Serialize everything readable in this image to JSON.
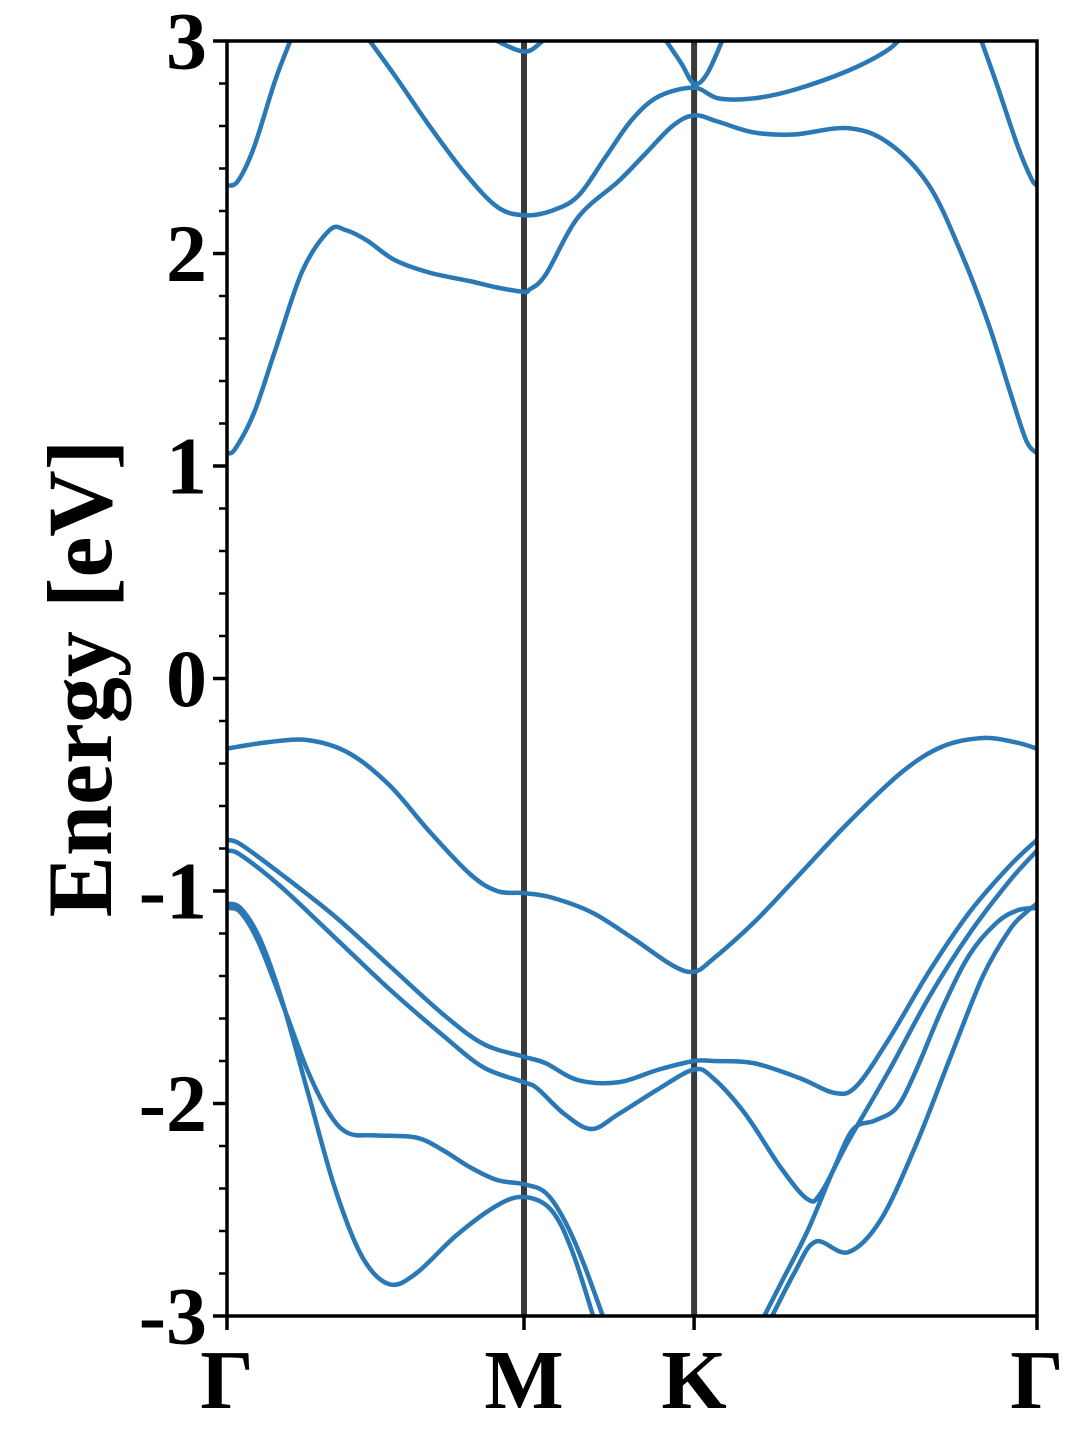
{
  "chart_data": {
    "type": "line",
    "title": "",
    "xlabel": "",
    "ylabel": "Energy [eV]",
    "ylim": [
      -3,
      3
    ],
    "x_range": [
      0,
      3
    ],
    "grid": false,
    "legend": "none",
    "y_ticks": [
      -3,
      -2,
      -1,
      0,
      1,
      2,
      3
    ],
    "y_tick_labels": [
      "-3",
      "-2",
      "-1",
      "0",
      "1",
      "2",
      "3"
    ],
    "x_ticks": [
      {
        "label": "Γ",
        "x": 0
      },
      {
        "label": "M",
        "x": 1.1
      },
      {
        "label": "K",
        "x": 1.73
      },
      {
        "label": "Γ",
        "x": 3
      }
    ],
    "line_color": "#2a78b5",
    "divider_color": "#3a3a3a",
    "series": [
      {
        "points": [
          [
            0,
            1.06
          ],
          [
            0.03,
            1.08
          ],
          [
            0.1,
            1.25
          ],
          [
            0.18,
            1.55
          ],
          [
            0.28,
            1.92
          ],
          [
            0.38,
            2.11
          ],
          [
            0.44,
            2.11
          ],
          [
            0.52,
            2.06
          ],
          [
            0.62,
            1.97
          ],
          [
            0.75,
            1.91
          ],
          [
            0.9,
            1.87
          ],
          [
            1.0,
            1.84
          ],
          [
            1.1,
            1.82
          ],
          [
            1.12,
            1.83
          ],
          [
            1.18,
            1.9
          ],
          [
            1.3,
            2.17
          ],
          [
            1.45,
            2.34
          ],
          [
            1.55,
            2.47
          ],
          [
            1.65,
            2.6
          ],
          [
            1.73,
            2.65
          ],
          [
            1.82,
            2.62
          ],
          [
            1.95,
            2.57
          ],
          [
            2.1,
            2.56
          ],
          [
            2.3,
            2.59
          ],
          [
            2.45,
            2.52
          ],
          [
            2.6,
            2.32
          ],
          [
            2.72,
            2.0
          ],
          [
            2.82,
            1.67
          ],
          [
            2.9,
            1.35
          ],
          [
            2.96,
            1.12
          ],
          [
            3.0,
            1.06
          ]
        ]
      },
      {
        "points": [
          [
            0,
            2.32
          ],
          [
            0.04,
            2.34
          ],
          [
            0.1,
            2.5
          ],
          [
            0.18,
            2.82
          ],
          [
            0.25,
            3.05
          ]
        ]
      },
      {
        "points": [
          [
            0.5,
            3.05
          ],
          [
            0.62,
            2.84
          ],
          [
            0.75,
            2.6
          ],
          [
            0.88,
            2.38
          ],
          [
            1.0,
            2.22
          ],
          [
            1.1,
            2.18
          ],
          [
            1.2,
            2.2
          ],
          [
            1.3,
            2.27
          ],
          [
            1.4,
            2.45
          ],
          [
            1.5,
            2.63
          ],
          [
            1.6,
            2.74
          ],
          [
            1.73,
            2.78
          ],
          [
            1.82,
            2.73
          ],
          [
            1.95,
            2.73
          ],
          [
            2.1,
            2.77
          ],
          [
            2.3,
            2.86
          ],
          [
            2.45,
            2.96
          ],
          [
            2.52,
            3.05
          ]
        ]
      },
      {
        "points": [
          [
            0.93,
            3.05
          ],
          [
            1.0,
            3.0
          ],
          [
            1.1,
            2.95
          ],
          [
            1.16,
            2.99
          ],
          [
            1.2,
            3.05
          ]
        ]
      },
      {
        "points": [
          [
            1.6,
            3.05
          ],
          [
            1.68,
            2.9
          ],
          [
            1.73,
            2.8
          ],
          [
            1.78,
            2.85
          ],
          [
            1.85,
            3.05
          ]
        ]
      },
      {
        "points": [
          [
            2.78,
            3.05
          ],
          [
            2.85,
            2.8
          ],
          [
            2.93,
            2.5
          ],
          [
            2.98,
            2.35
          ],
          [
            3.0,
            2.32
          ]
        ]
      },
      {
        "points": [
          [
            0,
            -0.33
          ],
          [
            0.15,
            -0.3
          ],
          [
            0.3,
            -0.29
          ],
          [
            0.45,
            -0.35
          ],
          [
            0.6,
            -0.5
          ],
          [
            0.75,
            -0.72
          ],
          [
            0.9,
            -0.92
          ],
          [
            1.0,
            -1.0
          ],
          [
            1.1,
            -1.01
          ],
          [
            1.2,
            -1.03
          ],
          [
            1.35,
            -1.1
          ],
          [
            1.5,
            -1.22
          ],
          [
            1.65,
            -1.35
          ],
          [
            1.73,
            -1.38
          ],
          [
            1.8,
            -1.32
          ],
          [
            1.95,
            -1.15
          ],
          [
            2.1,
            -0.95
          ],
          [
            2.3,
            -0.68
          ],
          [
            2.5,
            -0.44
          ],
          [
            2.65,
            -0.32
          ],
          [
            2.8,
            -0.28
          ],
          [
            2.92,
            -0.3
          ],
          [
            3.0,
            -0.33
          ]
        ]
      },
      {
        "points": [
          [
            0,
            -0.76
          ],
          [
            0.05,
            -0.78
          ],
          [
            0.2,
            -0.92
          ],
          [
            0.4,
            -1.12
          ],
          [
            0.6,
            -1.35
          ],
          [
            0.8,
            -1.58
          ],
          [
            0.95,
            -1.72
          ],
          [
            1.1,
            -1.78
          ],
          [
            1.18,
            -1.81
          ],
          [
            1.3,
            -1.89
          ],
          [
            1.45,
            -1.9
          ],
          [
            1.6,
            -1.84
          ],
          [
            1.73,
            -1.8
          ],
          [
            1.8,
            -1.8
          ],
          [
            1.95,
            -1.81
          ],
          [
            2.12,
            -1.88
          ],
          [
            2.25,
            -1.95
          ],
          [
            2.33,
            -1.92
          ],
          [
            2.45,
            -1.7
          ],
          [
            2.6,
            -1.38
          ],
          [
            2.75,
            -1.1
          ],
          [
            2.9,
            -0.88
          ],
          [
            3.0,
            -0.76
          ]
        ]
      },
      {
        "points": [
          [
            0,
            -0.81
          ],
          [
            0.05,
            -0.83
          ],
          [
            0.2,
            -0.98
          ],
          [
            0.4,
            -1.22
          ],
          [
            0.6,
            -1.46
          ],
          [
            0.8,
            -1.68
          ],
          [
            0.95,
            -1.83
          ],
          [
            1.1,
            -1.9
          ],
          [
            1.15,
            -1.93
          ],
          [
            1.25,
            -2.05
          ],
          [
            1.35,
            -2.12
          ],
          [
            1.45,
            -2.05
          ],
          [
            1.6,
            -1.93
          ],
          [
            1.73,
            -1.84
          ],
          [
            1.8,
            -1.88
          ],
          [
            1.92,
            -2.05
          ],
          [
            2.05,
            -2.3
          ],
          [
            2.15,
            -2.45
          ],
          [
            2.2,
            -2.42
          ],
          [
            2.3,
            -2.18
          ],
          [
            2.45,
            -1.85
          ],
          [
            2.6,
            -1.5
          ],
          [
            2.75,
            -1.2
          ],
          [
            2.9,
            -0.95
          ],
          [
            3.0,
            -0.81
          ]
        ]
      },
      {
        "points": [
          [
            0,
            -1.08
          ],
          [
            0.05,
            -1.1
          ],
          [
            0.12,
            -1.25
          ],
          [
            0.22,
            -1.58
          ],
          [
            0.3,
            -1.85
          ],
          [
            0.38,
            -2.05
          ],
          [
            0.45,
            -2.14
          ],
          [
            0.55,
            -2.15
          ],
          [
            0.7,
            -2.16
          ],
          [
            0.8,
            -2.22
          ],
          [
            0.9,
            -2.3
          ],
          [
            1.0,
            -2.36
          ],
          [
            1.1,
            -2.38
          ],
          [
            1.18,
            -2.42
          ],
          [
            1.25,
            -2.55
          ],
          [
            1.32,
            -2.75
          ],
          [
            1.42,
            -3.1
          ]
        ]
      },
      {
        "points": [
          [
            0,
            -1.06
          ],
          [
            0.05,
            -1.08
          ],
          [
            0.12,
            -1.22
          ],
          [
            0.2,
            -1.5
          ],
          [
            0.3,
            -1.95
          ],
          [
            0.4,
            -2.4
          ],
          [
            0.5,
            -2.72
          ],
          [
            0.6,
            -2.85
          ],
          [
            0.7,
            -2.8
          ],
          [
            0.85,
            -2.62
          ],
          [
            1.0,
            -2.48
          ],
          [
            1.1,
            -2.44
          ],
          [
            1.2,
            -2.5
          ],
          [
            1.28,
            -2.7
          ],
          [
            1.38,
            -3.1
          ]
        ]
      },
      {
        "points": [
          [
            1.95,
            -3.1
          ],
          [
            2.05,
            -2.85
          ],
          [
            2.15,
            -2.6
          ],
          [
            2.25,
            -2.3
          ],
          [
            2.32,
            -2.12
          ],
          [
            2.4,
            -2.08
          ],
          [
            2.48,
            -2.02
          ],
          [
            2.55,
            -1.85
          ],
          [
            2.65,
            -1.55
          ],
          [
            2.75,
            -1.3
          ],
          [
            2.85,
            -1.15
          ],
          [
            2.93,
            -1.09
          ],
          [
            3.0,
            -1.08
          ]
        ]
      },
      {
        "points": [
          [
            1.98,
            -3.1
          ],
          [
            2.1,
            -2.8
          ],
          [
            2.18,
            -2.65
          ],
          [
            2.3,
            -2.7
          ],
          [
            2.42,
            -2.55
          ],
          [
            2.55,
            -2.2
          ],
          [
            2.68,
            -1.78
          ],
          [
            2.8,
            -1.4
          ],
          [
            2.9,
            -1.18
          ],
          [
            2.96,
            -1.1
          ],
          [
            3.0,
            -1.06
          ]
        ]
      }
    ]
  }
}
